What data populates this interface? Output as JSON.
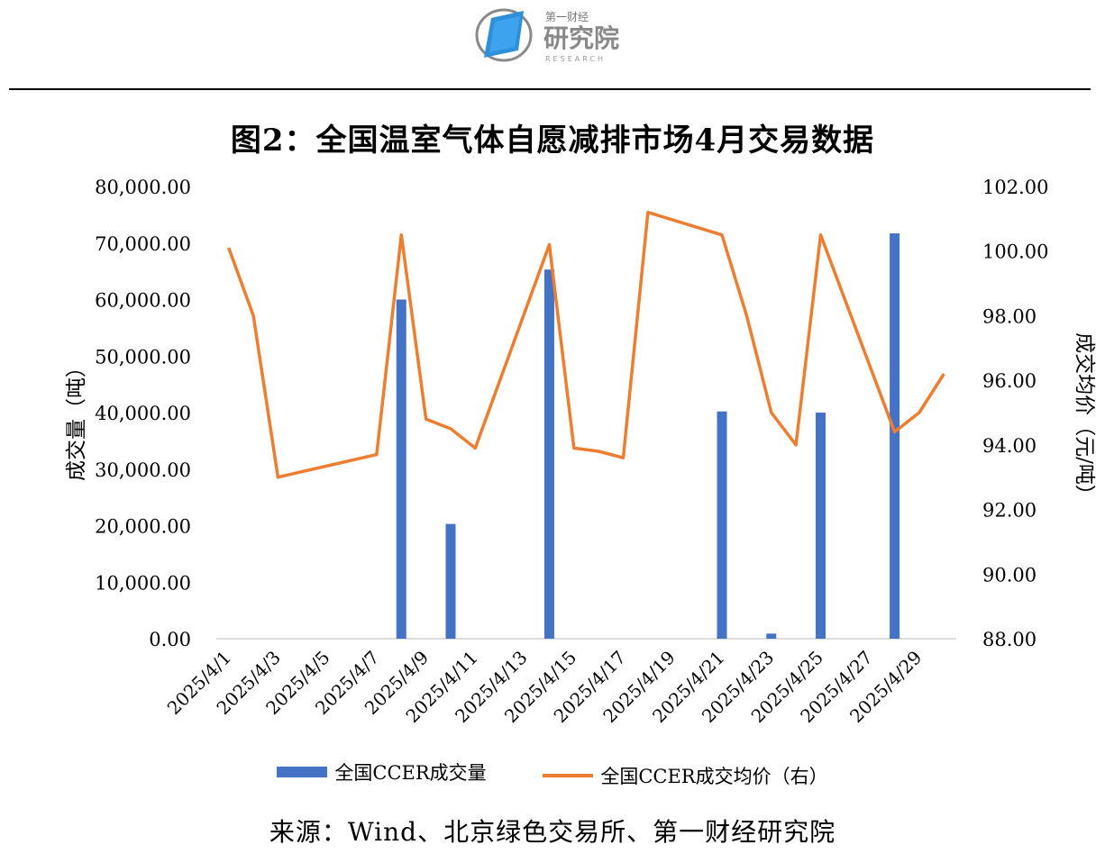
{
  "brand": {
    "name_small": "第一财经",
    "name_large": "研究院",
    "tagline": "RESEARCH"
  },
  "title": "图2：全国温室气体自愿减排市场4月交易数据",
  "source": "来源：Wind、北京绿色交易所、第一财经研究院",
  "colors": {
    "bar": "#4472C4",
    "line": "#ED7D31",
    "logo_blue": "#2f8fd8",
    "logo_gray": "#8a8a8a"
  },
  "chart_data": {
    "type": "bar+line",
    "x": [
      "2025/4/1",
      "2025/4/2",
      "2025/4/3",
      "2025/4/7",
      "2025/4/8",
      "2025/4/9",
      "2025/4/10",
      "2025/4/11",
      "2025/4/14",
      "2025/4/15",
      "2025/4/16",
      "2025/4/17",
      "2025/4/18",
      "2025/4/21",
      "2025/4/22",
      "2025/4/23",
      "2025/4/24",
      "2025/4/25",
      "2025/4/28",
      "2025/4/29",
      "2025/4/30"
    ],
    "x_tick_labels": [
      "2025/4/1",
      "2025/4/3",
      "2025/4/5",
      "2025/4/7",
      "2025/4/9",
      "2025/4/11",
      "2025/4/13",
      "2025/4/15",
      "2025/4/17",
      "2025/4/19",
      "2025/4/21",
      "2025/4/23",
      "2025/4/25",
      "2025/4/27",
      "2025/4/29"
    ],
    "series": [
      {
        "name": "全国CCER成交量",
        "type": "bar",
        "axis": "left",
        "values": [
          0,
          0,
          0,
          0,
          60000,
          0,
          20300,
          0,
          65300,
          0,
          0,
          0,
          0,
          40200,
          0,
          900,
          0,
          40000,
          71700,
          0,
          0
        ]
      },
      {
        "name": "全国CCER成交均价（右）",
        "type": "line",
        "axis": "right",
        "values": [
          100.1,
          98.0,
          93.0,
          93.7,
          100.5,
          94.8,
          94.5,
          93.9,
          100.2,
          93.9,
          93.8,
          93.6,
          101.2,
          100.5,
          98.0,
          95.0,
          94.0,
          100.5,
          94.4,
          95.0,
          96.2
        ]
      }
    ],
    "y_left": {
      "label": "成交量（吨）",
      "range": [
        0,
        80000
      ],
      "ticks": [
        "0.00",
        "10,000.00",
        "20,000.00",
        "30,000.00",
        "40,000.00",
        "50,000.00",
        "60,000.00",
        "70,000.00",
        "80,000.00"
      ]
    },
    "y_right": {
      "label": "成交均价（元/吨）",
      "range": [
        88,
        102
      ],
      "ticks": [
        "88.00",
        "90.00",
        "92.00",
        "94.00",
        "96.00",
        "98.00",
        "100.00",
        "102.00"
      ]
    },
    "grid": false,
    "legend": "bottom"
  }
}
